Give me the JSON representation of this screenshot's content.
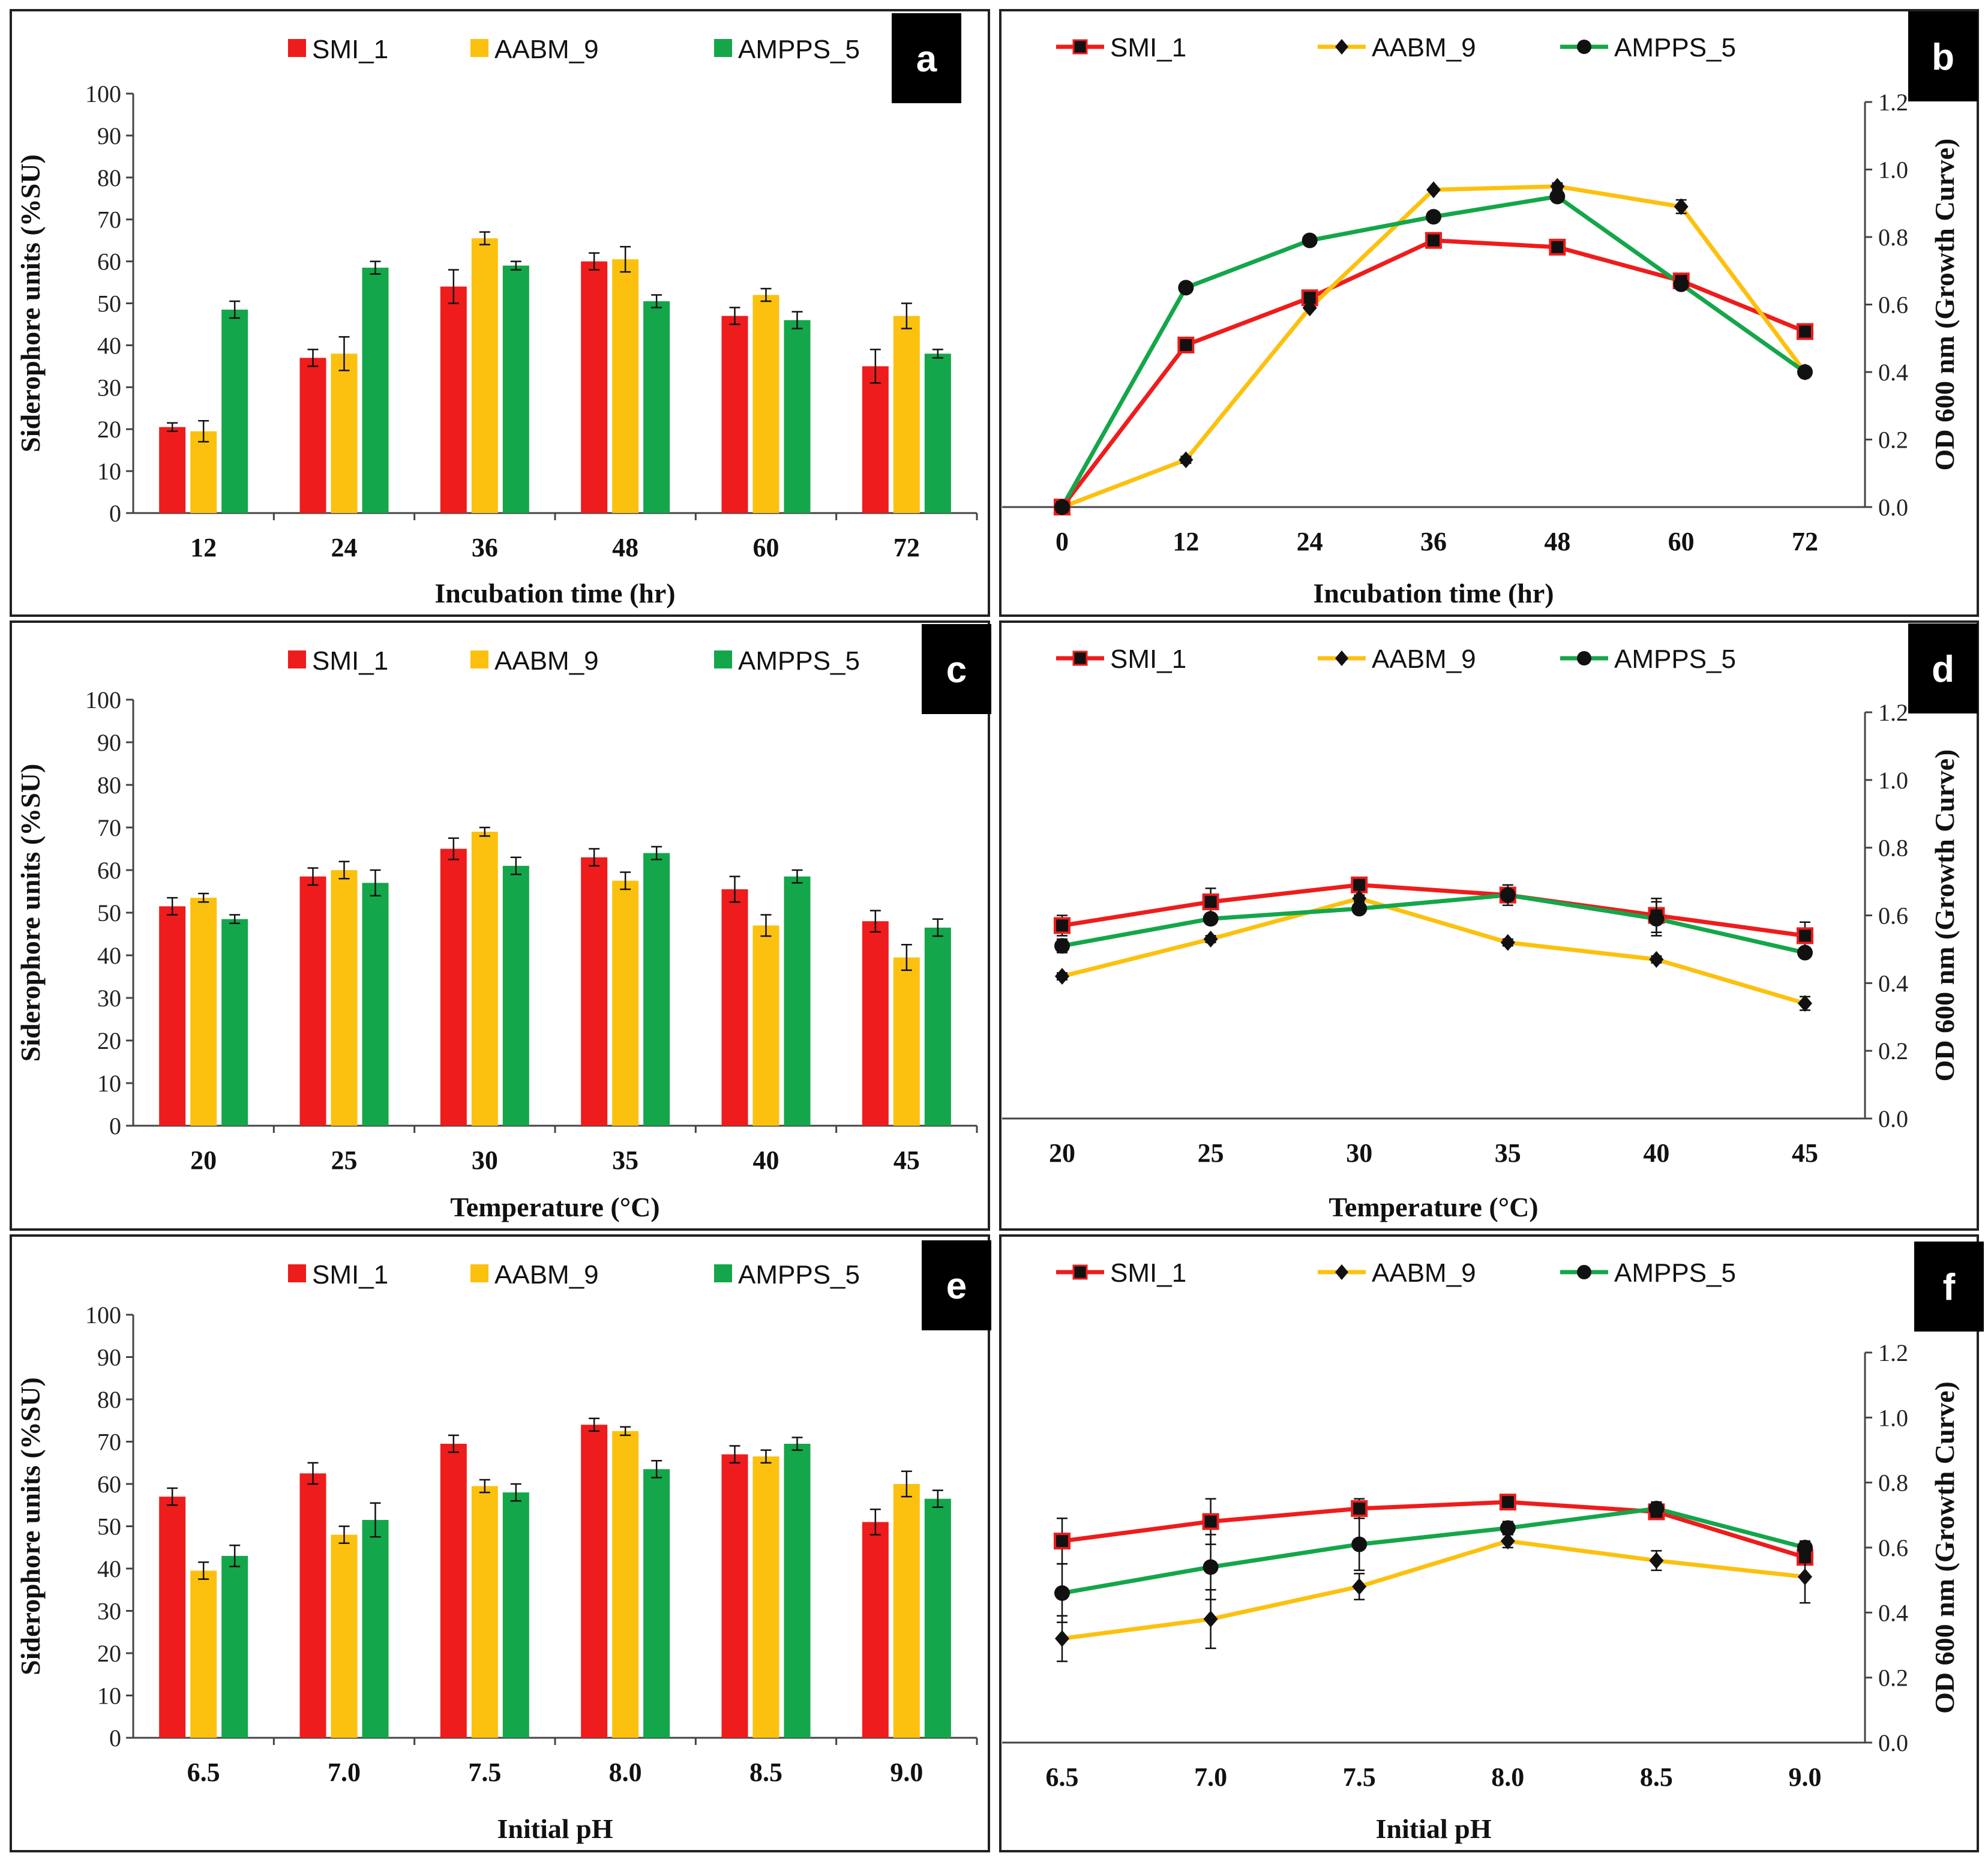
{
  "figure": {
    "series_names": [
      "SMI_1",
      "AABM_9",
      "AMPPS_5"
    ],
    "colors": {
      "SMI_1": "#ee1c1c",
      "AABM_9": "#fcc10f",
      "AMPPS_5": "#14a64a",
      "marker": "#111111"
    }
  },
  "chart_data": [
    {
      "panel": "a",
      "type": "bar",
      "title": "",
      "xlabel": "Incubation time (hr)",
      "ylabel": "Siderophore units (%SU)",
      "ylim": [
        0,
        100
      ],
      "yticks": [
        "0",
        "10",
        "20",
        "30",
        "40",
        "50",
        "60",
        "70",
        "80",
        "90",
        "100"
      ],
      "categories": [
        "12",
        "24",
        "36",
        "48",
        "60",
        "72"
      ],
      "legend": [
        "SMI_1",
        "AABM_9",
        "AMPPS_5"
      ],
      "legend_position": "top",
      "series": [
        {
          "name": "SMI_1",
          "values": [
            20.5,
            37,
            54,
            60,
            47,
            35
          ],
          "errors": [
            1,
            2,
            4,
            2,
            2,
            4
          ]
        },
        {
          "name": "AABM_9",
          "values": [
            19.5,
            38,
            65.5,
            60.5,
            52,
            47
          ],
          "errors": [
            2.5,
            4,
            1.5,
            3,
            1.5,
            3
          ]
        },
        {
          "name": "AMPPS_5",
          "values": [
            48.5,
            58.5,
            59,
            50.5,
            46,
            38
          ],
          "errors": [
            2,
            1.5,
            1,
            1.5,
            2,
            1
          ]
        }
      ]
    },
    {
      "panel": "b",
      "type": "line",
      "title": "",
      "xlabel": "Incubation time (hr)",
      "ylabel": "OD 600 nm (Growth Curve)",
      "ylim": [
        0,
        1.2
      ],
      "yticks": [
        "0.0",
        "0.2",
        "0.4",
        "0.6",
        "0.8",
        "1.0",
        "1.2"
      ],
      "x": [
        "0",
        "12",
        "24",
        "36",
        "48",
        "60",
        "72"
      ],
      "legend": [
        "SMI_1",
        "AABM_9",
        "AMPPS_5"
      ],
      "legend_position": "top",
      "series": [
        {
          "name": "SMI_1",
          "marker": "square",
          "values": [
            0,
            0.48,
            0.62,
            0.79,
            0.77,
            0.67,
            0.52
          ],
          "errors": [
            0,
            0,
            0,
            0,
            0,
            0,
            0
          ]
        },
        {
          "name": "AABM_9",
          "marker": "diamond",
          "values": [
            0,
            0.14,
            0.59,
            0.94,
            0.95,
            0.89,
            0.4
          ],
          "errors": [
            0,
            0.01,
            0,
            0,
            0.01,
            0.02,
            0
          ]
        },
        {
          "name": "AMPPS_5",
          "marker": "circle",
          "values": [
            0,
            0.65,
            0.79,
            0.86,
            0.92,
            0.66,
            0.4
          ],
          "errors": [
            0,
            0,
            0,
            0,
            0.01,
            0,
            0
          ]
        }
      ]
    },
    {
      "panel": "c",
      "type": "bar",
      "title": "",
      "xlabel": "Temperature (°C)",
      "ylabel": "Siderophore units (%SU)",
      "ylim": [
        0,
        100
      ],
      "yticks": [
        "0",
        "10",
        "20",
        "30",
        "40",
        "50",
        "60",
        "70",
        "80",
        "90",
        "100"
      ],
      "categories": [
        "20",
        "25",
        "30",
        "35",
        "40",
        "45"
      ],
      "legend": [
        "SMI_1",
        "AABM_9",
        "AMPPS_5"
      ],
      "legend_position": "top",
      "series": [
        {
          "name": "SMI_1",
          "values": [
            51.5,
            58.5,
            65,
            63,
            55.5,
            48
          ],
          "errors": [
            2,
            2,
            2.5,
            2,
            3,
            2.5
          ]
        },
        {
          "name": "AABM_9",
          "values": [
            53.5,
            60,
            69,
            57.5,
            47,
            39.5
          ],
          "errors": [
            1,
            2,
            1,
            2,
            2.5,
            3
          ]
        },
        {
          "name": "AMPPS_5",
          "values": [
            48.5,
            57,
            61,
            64,
            58.5,
            46.5
          ],
          "errors": [
            1,
            3,
            2,
            1.5,
            1.5,
            2
          ]
        }
      ]
    },
    {
      "panel": "d",
      "type": "line",
      "title": "",
      "xlabel": "Temperature (°C)",
      "ylabel": "OD 600 nm (Growth Curve)",
      "ylim": [
        0,
        1.2
      ],
      "yticks": [
        "0.0",
        "0.2",
        "0.4",
        "0.6",
        "0.8",
        "1.0",
        "1.2"
      ],
      "x": [
        "20",
        "25",
        "30",
        "35",
        "40",
        "45"
      ],
      "legend": [
        "SMI_1",
        "AABM_9",
        "AMPPS_5"
      ],
      "legend_position": "top",
      "series": [
        {
          "name": "SMI_1",
          "marker": "square",
          "values": [
            0.57,
            0.64,
            0.69,
            0.66,
            0.6,
            0.54
          ],
          "errors": [
            0.03,
            0.04,
            0.02,
            0.02,
            0.05,
            0.04
          ]
        },
        {
          "name": "AABM_9",
          "marker": "diamond",
          "values": [
            0.42,
            0.53,
            0.65,
            0.52,
            0.47,
            0.34
          ],
          "errors": [
            0.01,
            0.01,
            0.01,
            0.01,
            0.01,
            0.02
          ]
        },
        {
          "name": "AMPPS_5",
          "marker": "circle",
          "values": [
            0.51,
            0.59,
            0.62,
            0.66,
            0.59,
            0.49
          ],
          "errors": [
            0.02,
            0.01,
            0.01,
            0.03,
            0.05,
            0.01
          ]
        }
      ]
    },
    {
      "panel": "e",
      "type": "bar",
      "title": "",
      "xlabel": "Initial pH",
      "ylabel": "Siderophore units (%SU)",
      "ylim": [
        0,
        100
      ],
      "yticks": [
        "0",
        "10",
        "20",
        "30",
        "40",
        "50",
        "60",
        "70",
        "80",
        "90",
        "100"
      ],
      "categories": [
        "6.5",
        "7.0",
        "7.5",
        "8.0",
        "8.5",
        "9.0"
      ],
      "legend": [
        "SMI_1",
        "AABM_9",
        "AMPPS_5"
      ],
      "legend_position": "top",
      "series": [
        {
          "name": "SMI_1",
          "values": [
            57,
            62.5,
            69.5,
            74,
            67,
            51
          ],
          "errors": [
            2,
            2.5,
            2,
            1.5,
            2,
            3
          ]
        },
        {
          "name": "AABM_9",
          "values": [
            39.5,
            48,
            59.5,
            72.5,
            66.5,
            60
          ],
          "errors": [
            2,
            2,
            1.5,
            1,
            1.5,
            3
          ]
        },
        {
          "name": "AMPPS_5",
          "values": [
            43,
            51.5,
            58,
            63.5,
            69.5,
            56.5
          ],
          "errors": [
            2.5,
            4,
            2,
            2,
            1.5,
            2
          ]
        }
      ]
    },
    {
      "panel": "f",
      "type": "line",
      "title": "",
      "xlabel": "Initial pH",
      "ylabel": "OD 600 nm (Growth Curve)",
      "ylim": [
        0,
        1.2
      ],
      "yticks": [
        "0.0",
        "0.2",
        "0.4",
        "0.6",
        "0.8",
        "1.0",
        "1.2"
      ],
      "x": [
        "6.5",
        "7.0",
        "7.5",
        "8.0",
        "8.5",
        "9.0"
      ],
      "legend": [
        "SMI_1",
        "AABM_9",
        "AMPPS_5"
      ],
      "legend_position": "top",
      "series": [
        {
          "name": "SMI_1",
          "marker": "square",
          "values": [
            0.62,
            0.68,
            0.72,
            0.74,
            0.71,
            0.57
          ],
          "errors": [
            0.07,
            0.07,
            0.03,
            0.01,
            0.02,
            0.02
          ]
        },
        {
          "name": "AABM_9",
          "marker": "diamond",
          "values": [
            0.32,
            0.38,
            0.48,
            0.62,
            0.56,
            0.51
          ],
          "errors": [
            0.07,
            0.09,
            0.04,
            0.02,
            0.03,
            0.08
          ]
        },
        {
          "name": "AMPPS_5",
          "marker": "circle",
          "values": [
            0.46,
            0.54,
            0.61,
            0.66,
            0.72,
            0.6
          ],
          "errors": [
            0.09,
            0.1,
            0.08,
            0.02,
            0.02,
            0.02
          ]
        }
      ]
    }
  ]
}
